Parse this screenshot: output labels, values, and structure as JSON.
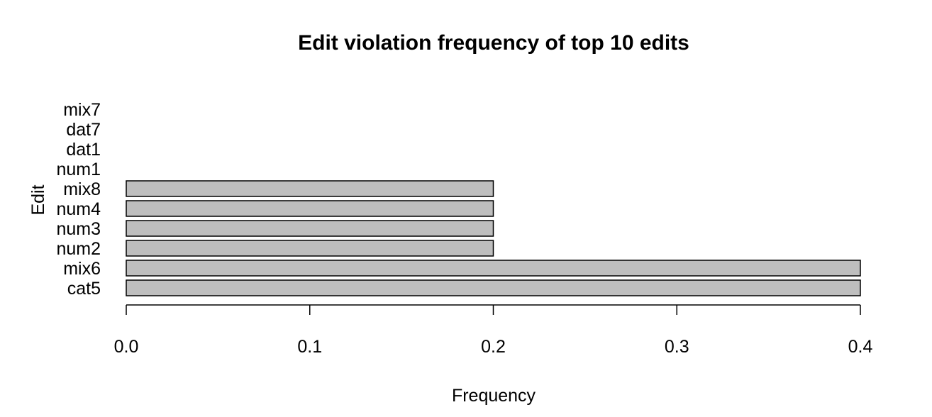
{
  "chart_data": {
    "type": "bar",
    "orientation": "horizontal",
    "title": "Edit violation frequency of top 10 edits",
    "xlabel": "Frequency",
    "ylabel": "Edit",
    "categories": [
      "cat5",
      "mix6",
      "num2",
      "num3",
      "num4",
      "mix8",
      "num1",
      "dat1",
      "dat7",
      "mix7"
    ],
    "values": [
      0.4,
      0.4,
      0.2,
      0.2,
      0.2,
      0.2,
      0,
      0,
      0,
      0
    ],
    "xlim": [
      0,
      0.4
    ],
    "xticks": [
      "0.0",
      "0.1",
      "0.2",
      "0.3",
      "0.4"
    ],
    "grid": false,
    "legend": "none",
    "bar_color": "#bebebe",
    "border_color": "#000000"
  }
}
